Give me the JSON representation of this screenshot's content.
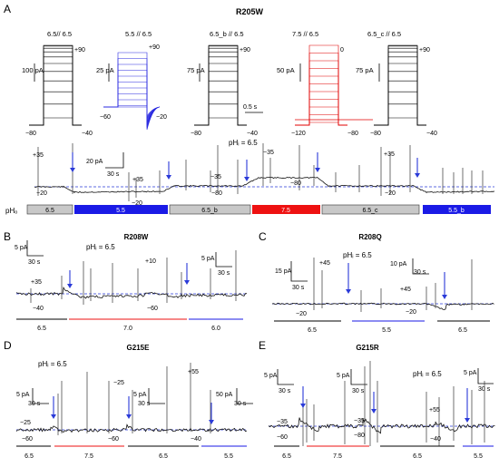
{
  "panels": {
    "A": {
      "letter": "A",
      "title": "R205W",
      "families": [
        {
          "label": "6.5// 6.5",
          "scale": "100 pA",
          "vtop": "+90",
          "v1": "−80",
          "v2": "−40",
          "color": "#000000"
        },
        {
          "label": "5.5 // 6.5",
          "scale": "25 pA",
          "vtop": "+90",
          "v1": "−60",
          "v2": "−20",
          "color": "#2a2ae0"
        },
        {
          "label": "6.5_b // 6.5",
          "scale": "75 pA",
          "vtop": "+90",
          "v1": "−80",
          "v2": "−40",
          "color": "#000000",
          "time": "0.5 s"
        },
        {
          "label": "7.5 // 6.5",
          "scale": "50 pA",
          "vtop": "0",
          "v1": "−120",
          "v2": "−80",
          "color": "#e00000"
        },
        {
          "label": "6.5_c // 6.5",
          "scale": "75 pA",
          "vtop": "+90",
          "v1": "−80",
          "v2": "−40",
          "color": "#000000"
        }
      ],
      "trace": {
        "phi": "pHᵢ = 6.5",
        "scale_y": "20 pA",
        "scale_x": "30 s",
        "volts": [
          "+35",
          "−20",
          "+35",
          "−20",
          "−35",
          "−80",
          "−35",
          "−80",
          "+35",
          "−20"
        ]
      },
      "pho_label": "pHₒ",
      "conditions": [
        {
          "label": "6.5",
          "fill": "#c8c8c8",
          "text": "#000000"
        },
        {
          "label": "5.5",
          "fill": "#1a1ae6",
          "text": "#ffffff"
        },
        {
          "label": "6.5_b",
          "fill": "#c8c8c8",
          "text": "#000000"
        },
        {
          "label": "7.5",
          "fill": "#ee1111",
          "text": "#ffffff"
        },
        {
          "label": "6.5_c",
          "fill": "#c8c8c8",
          "text": "#000000"
        },
        {
          "label": "5.5_b",
          "fill": "#1a1ae6",
          "text": "#ffffff"
        }
      ]
    },
    "B": {
      "letter": "B",
      "title": "R208W",
      "phi": "pHᵢ = 6.5",
      "scale1": "5 pA",
      "time1": "30 s",
      "scale2": "5 pA",
      "time2": "30 s",
      "v_a": "+35",
      "v_b": "−40",
      "v_c": "+10",
      "v_d": "−60",
      "ph": [
        "6.5",
        "7.0",
        "6.0"
      ]
    },
    "C": {
      "letter": "C",
      "title": "R208Q",
      "phi": "pHᵢ = 6.5",
      "scale1": "15 pA",
      "time1": "30 s",
      "scale2": "10 pA",
      "time2": "30 s",
      "v_a": "+45",
      "v_b": "−20",
      "v_c": "+45",
      "v_d": "−20",
      "ph": [
        "6.5",
        "5.5",
        "6.5"
      ]
    },
    "D": {
      "letter": "D",
      "title": "G215E",
      "phi": "pHᵢ = 6.5",
      "scale1": "5 pA",
      "time1": "30 s",
      "scale2": "5 pA",
      "time2": "30 s",
      "scale3": "50 pA",
      "time3": "30 s",
      "v_a": "−25",
      "v_b": "−60",
      "v_c": "−25",
      "v_d": "−60",
      "v_e": "+55",
      "v_f": "−40",
      "ph": [
        "6.5",
        "7.5",
        "6.5",
        "5.5"
      ]
    },
    "E": {
      "letter": "E",
      "title": "G215R",
      "phi": "pHᵢ = 6.5",
      "scale1": "5 pA",
      "time1": "30 s",
      "scale2": "5 pA",
      "time2": "30 s",
      "scale3": "5 pA",
      "time3": "30 s",
      "v_a": "−35",
      "v_b": "−60",
      "v_c": "−35",
      "v_d": "−80",
      "v_e": "+55",
      "v_f": "−40",
      "ph": [
        "6.5",
        "7.5",
        "6.5",
        "5.5"
      ]
    }
  },
  "colors": {
    "blue_arrow": "#2a3ad8",
    "baseline": "#2a3ad8",
    "trace": "#111111"
  }
}
